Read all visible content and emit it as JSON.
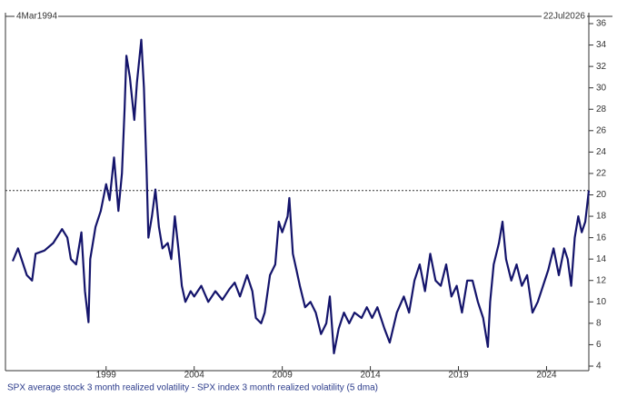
{
  "chart_data": {
    "type": "line",
    "start_label": "4Mar1994",
    "end_label": "22Jul2026",
    "caption": "SPX average stock 3 month realized volatility - SPX index 3 month realized volatility (5 dma)",
    "xlim": [
      1993.7,
      2026.4
    ],
    "xticks": [
      1999,
      2004,
      2009,
      2014,
      2019,
      2024
    ],
    "ylim": [
      4,
      36
    ],
    "yticks": [
      4,
      6,
      8,
      10,
      12,
      14,
      16,
      18,
      20,
      22,
      24,
      26,
      28,
      30,
      32,
      34,
      36
    ],
    "reference_line": 20.4,
    "series": [
      {
        "color": "#14146b",
        "x": [
          1993.7,
          1994.0,
          1994.5,
          1994.8,
          1995.0,
          1995.5,
          1996.0,
          1996.5,
          1996.8,
          1997.0,
          1997.3,
          1997.6,
          1997.8,
          1998.0,
          1998.1,
          1998.4,
          1998.7,
          1999.0,
          1999.2,
          1999.45,
          1999.7,
          1999.9,
          2000.05,
          2000.15,
          2000.35,
          2000.6,
          2000.75,
          2001.0,
          2001.15,
          2001.3,
          2001.4,
          2001.6,
          2001.8,
          2002.0,
          2002.2,
          2002.5,
          2002.7,
          2002.9,
          2003.1,
          2003.3,
          2003.5,
          2003.8,
          2004.0,
          2004.4,
          2004.8,
          2005.2,
          2005.6,
          2006.0,
          2006.3,
          2006.6,
          2007.0,
          2007.3,
          2007.5,
          2007.8,
          2008.0,
          2008.3,
          2008.6,
          2008.8,
          2009.0,
          2009.3,
          2009.4,
          2009.6,
          2009.8,
          2010.0,
          2010.3,
          2010.6,
          2010.9,
          2011.2,
          2011.5,
          2011.7,
          2011.93,
          2012.2,
          2012.5,
          2012.8,
          2013.1,
          2013.5,
          2013.8,
          2014.1,
          2014.4,
          2014.8,
          2015.1,
          2015.5,
          2015.9,
          2016.2,
          2016.5,
          2016.8,
          2017.1,
          2017.4,
          2017.7,
          2018.0,
          2018.3,
          2018.6,
          2018.9,
          2019.2,
          2019.5,
          2019.8,
          2020.1,
          2020.4,
          2020.67,
          2020.8,
          2021.0,
          2021.3,
          2021.5,
          2021.7,
          2022.0,
          2022.3,
          2022.6,
          2022.9,
          2023.2,
          2023.5,
          2023.8,
          2024.1,
          2024.4,
          2024.7,
          2025.0,
          2025.2,
          2025.4,
          2025.6,
          2025.8,
          2026.0,
          2026.2,
          2026.4
        ],
        "values": [
          13.8,
          15.0,
          12.5,
          12.0,
          14.5,
          14.8,
          15.5,
          16.8,
          16.0,
          14.0,
          13.5,
          16.5,
          11.0,
          8.1,
          14.0,
          17.0,
          18.5,
          21.0,
          19.5,
          23.5,
          18.5,
          22.0,
          28.0,
          33.0,
          31.0,
          27.0,
          30.5,
          34.5,
          30.0,
          22.0,
          16.0,
          18.0,
          20.5,
          17.0,
          15.0,
          15.5,
          14.0,
          18.0,
          15.0,
          11.5,
          10.0,
          11.0,
          10.5,
          11.5,
          10.0,
          11.0,
          10.2,
          11.2,
          11.8,
          10.5,
          12.5,
          11.0,
          8.5,
          8.0,
          9.0,
          12.5,
          13.5,
          17.5,
          16.5,
          18.0,
          19.7,
          14.5,
          13.0,
          11.5,
          9.5,
          10.0,
          9.0,
          7.0,
          8.0,
          10.5,
          5.2,
          7.5,
          9.0,
          8.0,
          9.0,
          8.5,
          9.5,
          8.5,
          9.5,
          7.5,
          6.2,
          9.0,
          10.5,
          9.0,
          12.0,
          13.5,
          11.0,
          14.5,
          12.0,
          11.5,
          13.5,
          10.5,
          11.5,
          9.0,
          12.0,
          12.0,
          10.0,
          8.5,
          5.8,
          10.0,
          13.5,
          15.5,
          17.5,
          14.0,
          12.0,
          13.5,
          11.5,
          12.5,
          9.0,
          10.0,
          11.5,
          13.0,
          15.0,
          12.5,
          15.0,
          14.0,
          11.5,
          16.0,
          18.0,
          16.5,
          17.5,
          20.4
        ]
      }
    ]
  }
}
